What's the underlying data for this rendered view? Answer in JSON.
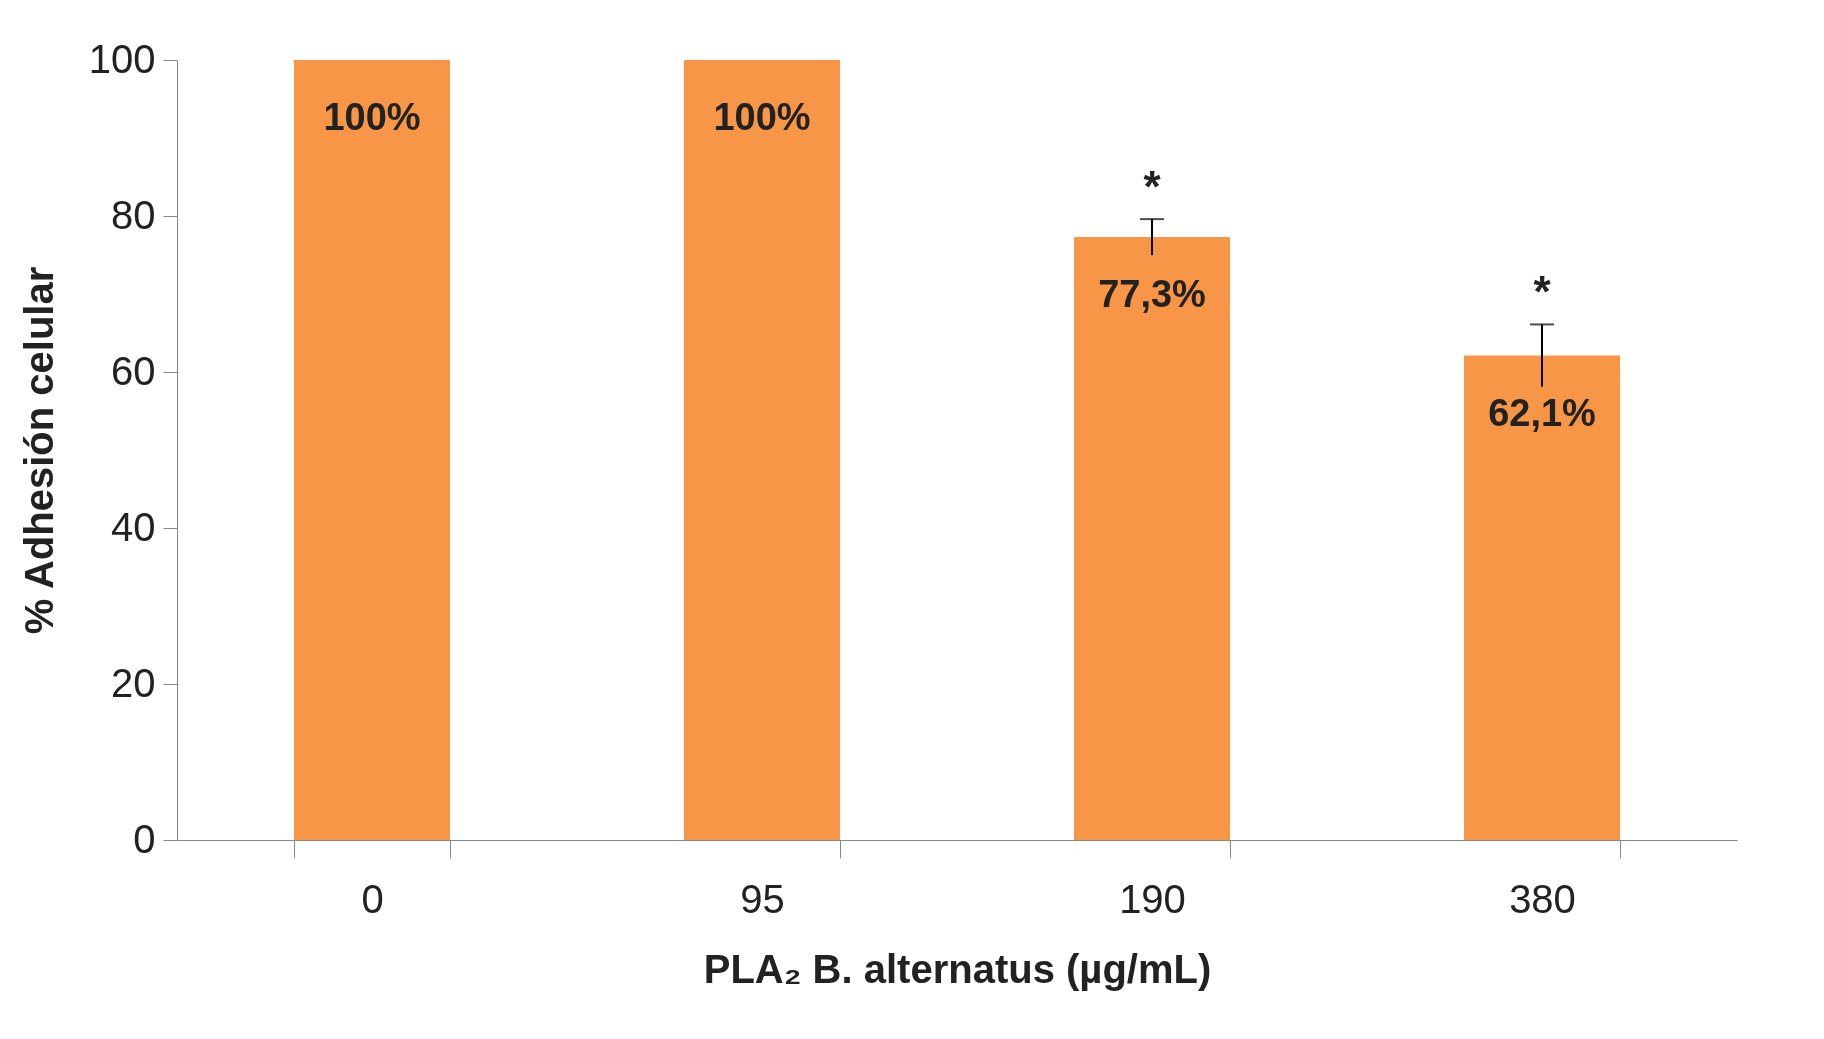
{
  "chart_data": {
    "type": "bar",
    "xlabel": "PLA₂ B. alternatus (µg/mL)",
    "ylabel": "% Adhesión celular",
    "categories": [
      "0",
      "95",
      "190",
      "380"
    ],
    "values": [
      100,
      100,
      77.3,
      62.1
    ],
    "value_labels": [
      "100%",
      "100%",
      "77,3%",
      "62,1%"
    ],
    "errors": [
      null,
      null,
      2.3,
      4
    ],
    "color": "#f79646",
    "ylim": [
      0,
      100
    ],
    "yticks": [
      0,
      20,
      40,
      60,
      80,
      100
    ],
    "grid": false,
    "annotations": [
      "*",
      "*"
    ]
  }
}
